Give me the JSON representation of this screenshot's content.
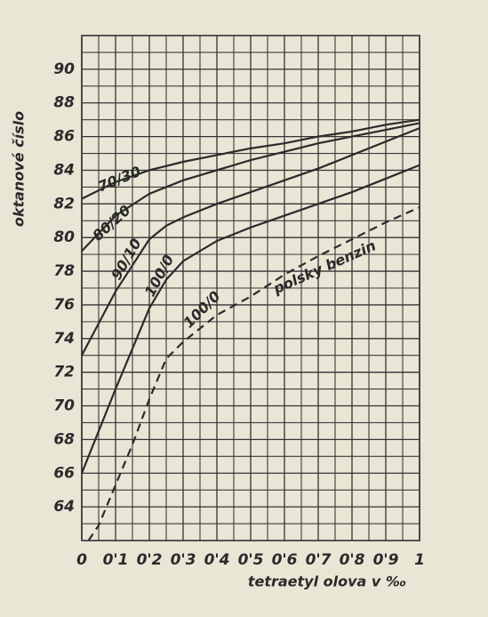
{
  "chart_data": {
    "type": "line",
    "x_label": "tetraetyl olova v ‰",
    "y_label": "oktanové číslo",
    "xlim": [
      0,
      1
    ],
    "ylim": [
      62,
      92
    ],
    "xticks": [
      0,
      {
        "value": 0.1,
        "label": "0'1"
      },
      {
        "value": 0.2,
        "label": "0'2"
      },
      {
        "value": 0.3,
        "label": "0'3"
      },
      {
        "value": 0.4,
        "label": "0'4"
      },
      {
        "value": 0.5,
        "label": "0'5"
      },
      {
        "value": 0.6,
        "label": "0'6"
      },
      {
        "value": 0.7,
        "label": "0'7"
      },
      {
        "value": 0.8,
        "label": "0'8"
      },
      {
        "value": 0.9,
        "label": "0'9"
      },
      1
    ],
    "yticks": [
      64,
      66,
      68,
      70,
      72,
      74,
      76,
      78,
      80,
      82,
      84,
      86,
      88,
      90
    ],
    "grid": true,
    "series": [
      {
        "name": "70/30",
        "color": "#2b2b2b",
        "dash": false,
        "x": [
          0,
          0.1,
          0.2,
          0.3,
          0.4,
          0.5,
          0.6,
          0.7,
          0.8,
          0.9,
          1
        ],
        "values": [
          82.3,
          83.3,
          84.0,
          84.5,
          84.9,
          85.3,
          85.6,
          86.0,
          86.3,
          86.7,
          87.0
        ]
      },
      {
        "name": "80/20",
        "color": "#2b2b2b",
        "dash": false,
        "x": [
          0,
          0.1,
          0.2,
          0.3,
          0.4,
          0.5,
          0.6,
          0.7,
          0.8,
          0.9,
          1
        ],
        "values": [
          79.2,
          81.3,
          82.6,
          83.4,
          84.0,
          84.6,
          85.1,
          85.6,
          86.0,
          86.4,
          86.8
        ]
      },
      {
        "name": "90/10",
        "color": "#2b2b2b",
        "dash": false,
        "x": [
          0,
          0.1,
          0.2,
          0.25,
          0.3,
          0.4,
          0.5,
          0.6,
          0.7,
          0.8,
          0.9,
          1
        ],
        "values": [
          73.0,
          76.8,
          79.9,
          80.7,
          81.2,
          82.0,
          82.7,
          83.4,
          84.1,
          84.9,
          85.7,
          86.5
        ]
      },
      {
        "name": "100/0",
        "color": "#2b2b2b",
        "dash": false,
        "x": [
          0,
          0.1,
          0.2,
          0.25,
          0.3,
          0.4,
          0.5,
          0.6,
          0.7,
          0.8,
          0.9,
          1
        ],
        "values": [
          66.0,
          71.0,
          75.8,
          77.5,
          78.6,
          79.8,
          80.6,
          81.3,
          82.0,
          82.7,
          83.5,
          84.3
        ]
      },
      {
        "name": "100/0",
        "color": "#2b2b2b",
        "dash": true,
        "x": [
          0.02,
          0.05,
          0.1,
          0.15,
          0.2,
          0.25,
          0.3,
          0.4,
          0.5,
          0.6,
          0.7,
          0.8,
          0.9,
          1
        ],
        "values": [
          62.0,
          62.9,
          65.3,
          67.7,
          70.4,
          72.8,
          73.8,
          75.4,
          76.5,
          77.8,
          78.9,
          79.9,
          80.9,
          81.8
        ]
      }
    ],
    "annotations": [
      "polsky benzin"
    ]
  }
}
